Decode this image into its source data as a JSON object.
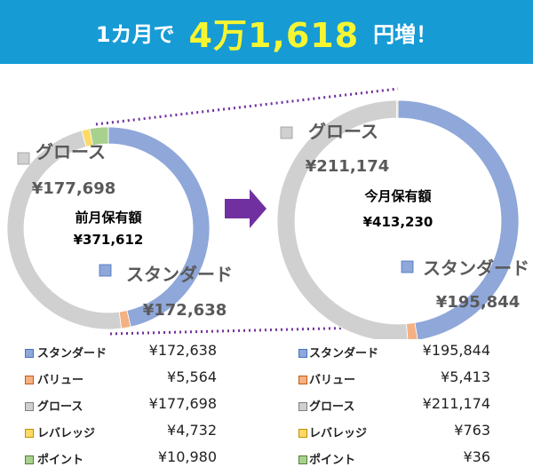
{
  "headline": {
    "prefix": "1カ月で",
    "amount": "4万1,618",
    "suffix": "円増！"
  },
  "colors": {
    "banner": "#169bd5",
    "amount": "#f5f532",
    "standard": "#8fa7d9",
    "value": "#f4b183",
    "growth": "#d0d0d0",
    "leverage": "#ffd966",
    "point": "#a9d18e",
    "arrow": "#7030a0"
  },
  "chart_data": [
    {
      "type": "pie",
      "center_label": "前月保有額",
      "center_value": "¥371,612",
      "series": [
        {
          "name": "スタンダード",
          "value": 172638,
          "label": "¥172,638"
        },
        {
          "name": "バリュー",
          "value": 5564,
          "label": "¥5,564"
        },
        {
          "name": "グロース",
          "value": 177698,
          "label": "¥177,698"
        },
        {
          "name": "レバレッジ",
          "value": 4732,
          "label": "¥4,732"
        },
        {
          "name": "ポイント",
          "value": 10980,
          "label": "¥10,980"
        }
      ]
    },
    {
      "type": "pie",
      "center_label": "今月保有額",
      "center_value": "¥413,230",
      "series": [
        {
          "name": "スタンダード",
          "value": 195844,
          "label": "¥195,844"
        },
        {
          "name": "バリュー",
          "value": 5413,
          "label": "¥5,413"
        },
        {
          "name": "グロース",
          "value": 211174,
          "label": "¥211,174"
        },
        {
          "name": "レバレッジ",
          "value": 763,
          "label": "¥763"
        },
        {
          "name": "ポイント",
          "value": 36,
          "label": "¥36"
        }
      ]
    }
  ]
}
